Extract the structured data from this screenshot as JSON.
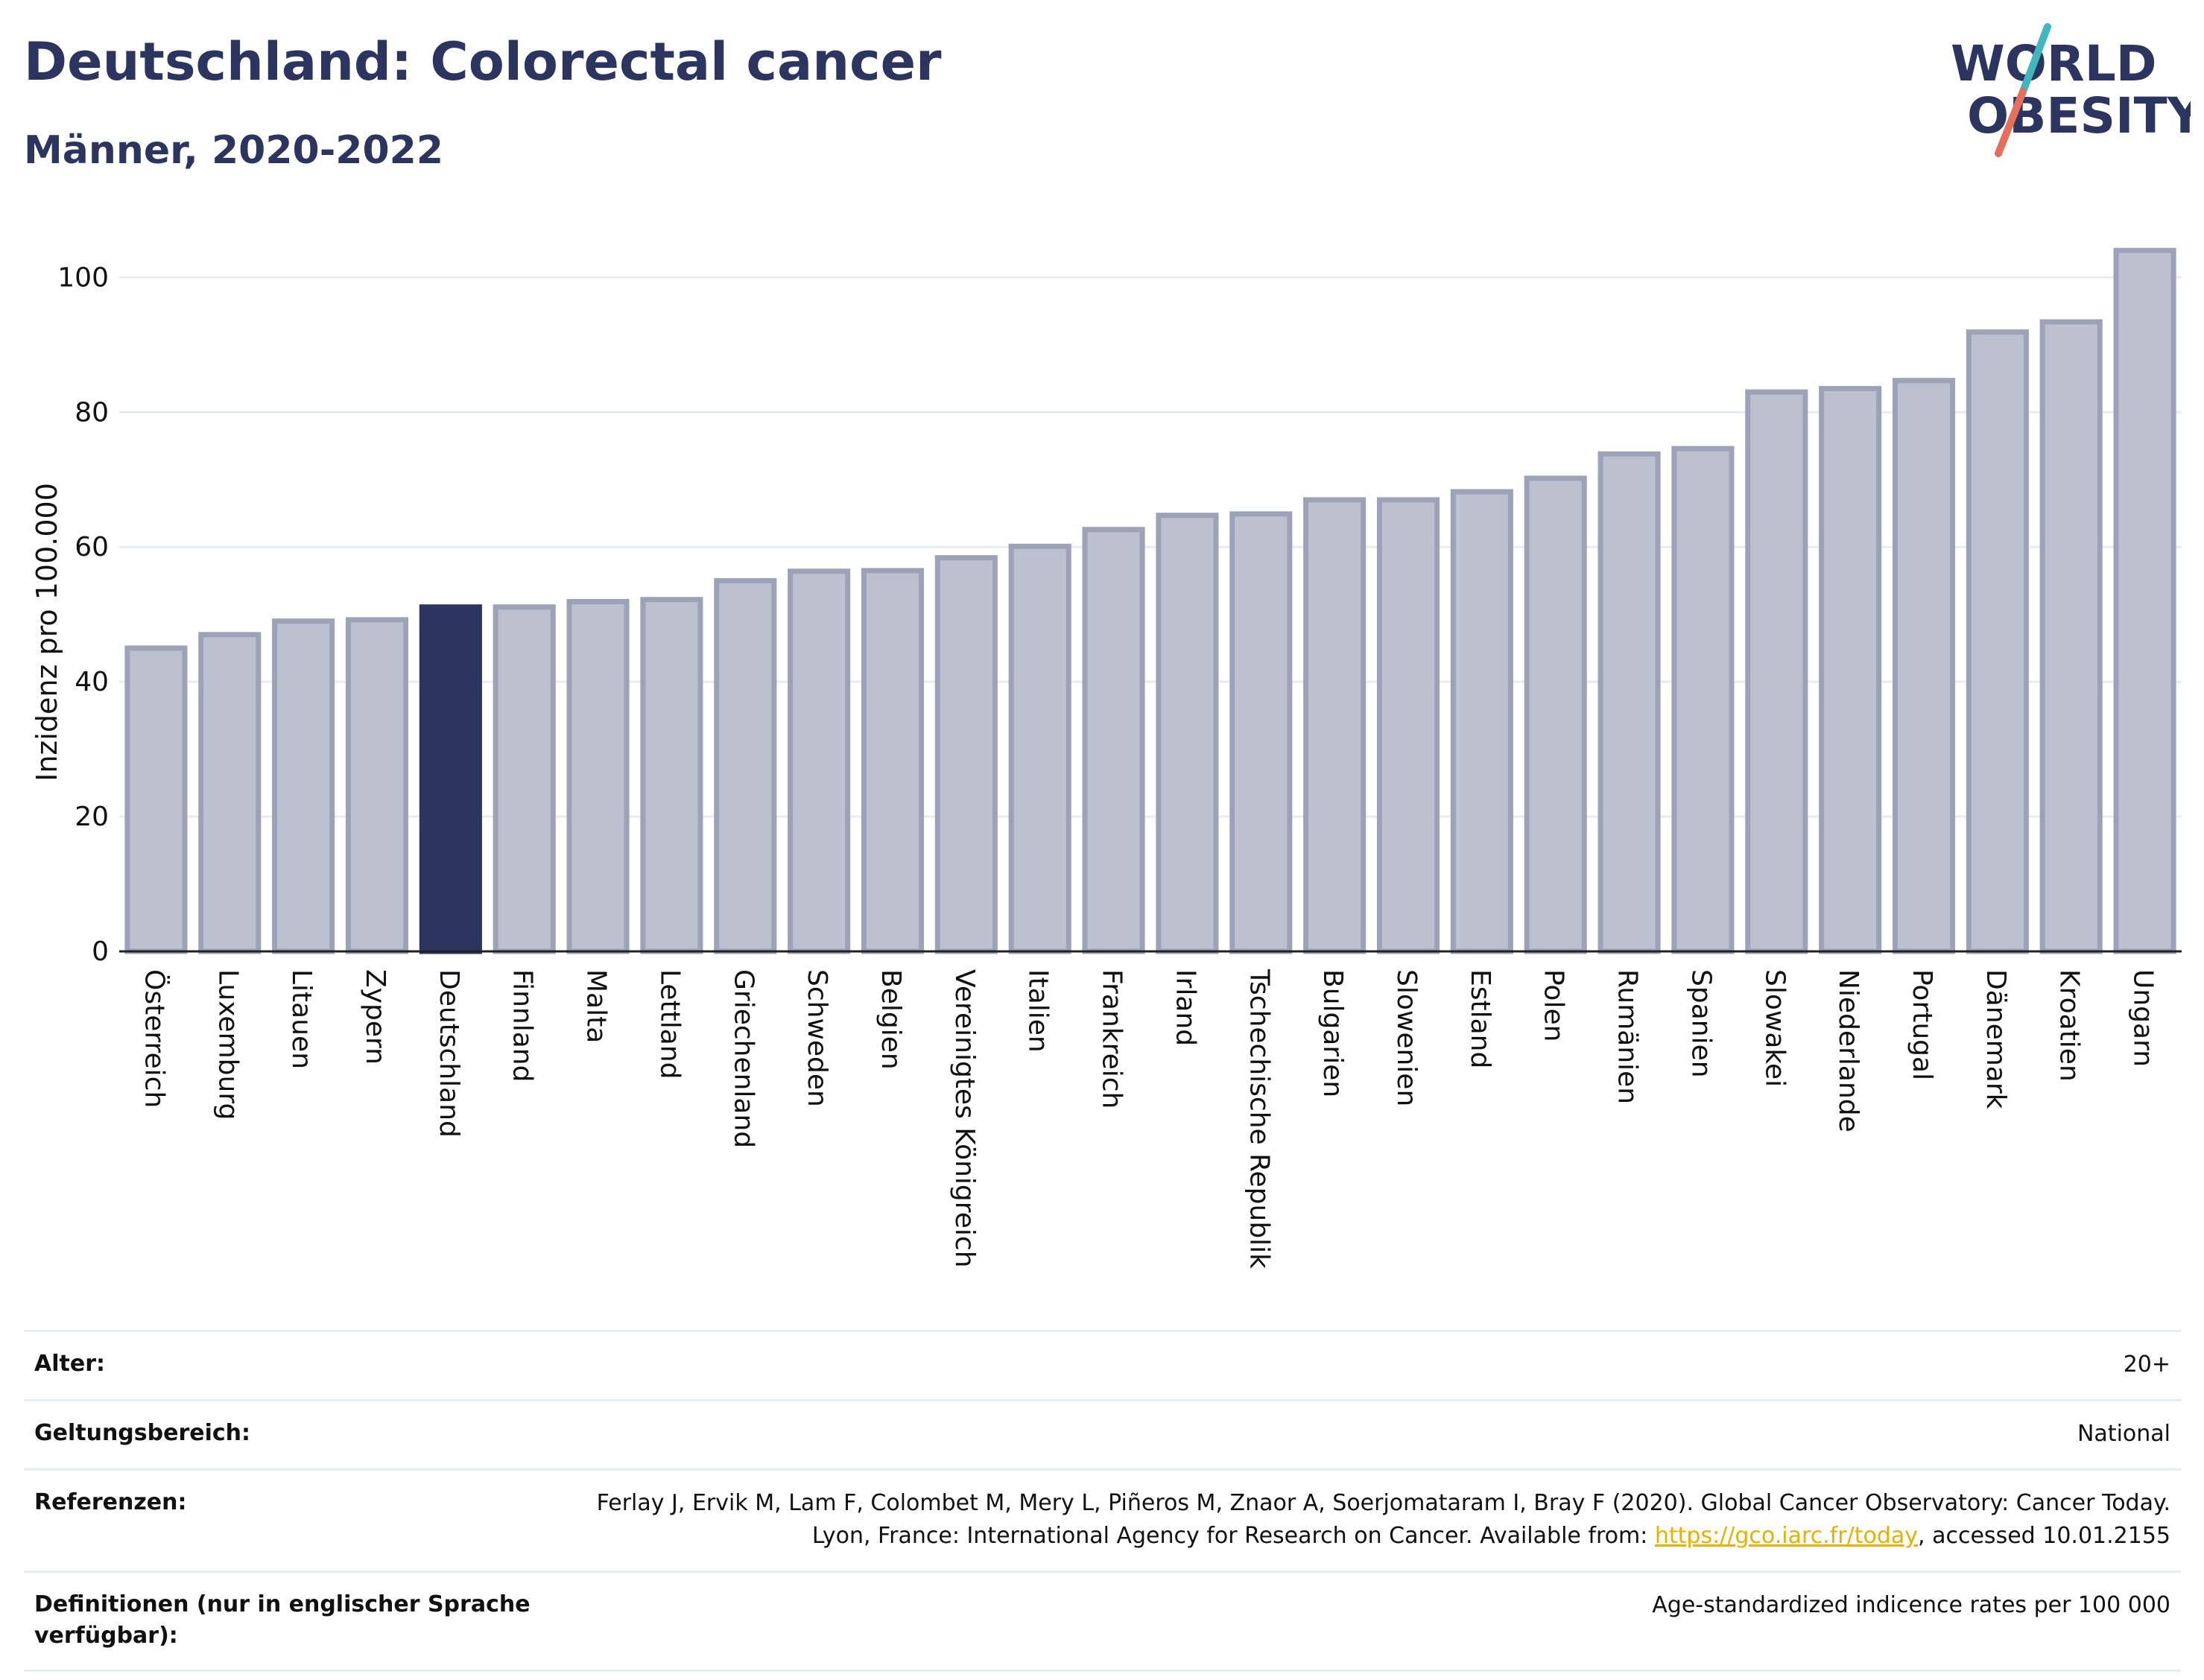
{
  "header": {
    "title": "Deutschland: Colorectal cancer",
    "subtitle": "Männer, 2020-2022"
  },
  "logo": {
    "line1": "WORLD",
    "line2": "OBESITY",
    "colors": {
      "text": "#2b3560",
      "slash_teal": "#3fb6c0",
      "slash_coral": "#e4705c"
    }
  },
  "colors": {
    "highlight": "#2b3560",
    "bar_fill": "#bdc0ce",
    "bar_stroke": "#9da2b8",
    "grid": "#e8ecf2",
    "link": "#e7b100"
  },
  "chart_data": {
    "type": "bar",
    "ylabel": "Inzidenz pro 100.000",
    "xlabel": "",
    "ylim": [
      0,
      108
    ],
    "yticks": [
      0,
      20,
      40,
      60,
      80,
      100
    ],
    "grid": true,
    "highlight": "Deutschland",
    "categories": [
      "Österreich",
      "Luxemburg",
      "Litauen",
      "Zypern",
      "Deutschland",
      "Finnland",
      "Malta",
      "Lettland",
      "Griechenland",
      "Schweden",
      "Belgien",
      "Vereinigtes Königreich",
      "Italien",
      "Frankreich",
      "Irland",
      "Tschechische Republik",
      "Bulgarien",
      "Slowenien",
      "Estland",
      "Polen",
      "Rumänien",
      "Spanien",
      "Slowakei",
      "Niederlande",
      "Portugal",
      "Dänemark",
      "Kroatien",
      "Ungarn"
    ],
    "values": [
      45.0,
      47.0,
      49.0,
      49.2,
      51.1,
      51.1,
      51.9,
      52.2,
      55.0,
      56.4,
      56.5,
      58.4,
      60.1,
      62.6,
      64.7,
      64.9,
      67.0,
      67.0,
      68.2,
      70.2,
      73.8,
      74.6,
      83.0,
      83.5,
      84.7,
      91.9,
      93.4,
      104.0
    ]
  },
  "info": {
    "age_label": "Alter:",
    "age_value": "20+",
    "scope_label": "Geltungsbereich:",
    "scope_value": "National",
    "ref_label": "Referenzen:",
    "ref_text_1": "Ferlay J, Ervik M, Lam F, Colombet M, Mery L, Piñeros M, Znaor A, Soerjomataram I, Bray F (2020). Global Cancer Observatory: Cancer Today. Lyon, France: International Agency for Research on Cancer. Available from: ",
    "ref_link": "https://gco.iarc.fr/today",
    "ref_text_2": ", accessed 10.01.2155",
    "def_label": "Definitionen (nur in englischer Sprache verfügbar):",
    "def_value": "Age-standardized indicence rates per 100 000"
  }
}
